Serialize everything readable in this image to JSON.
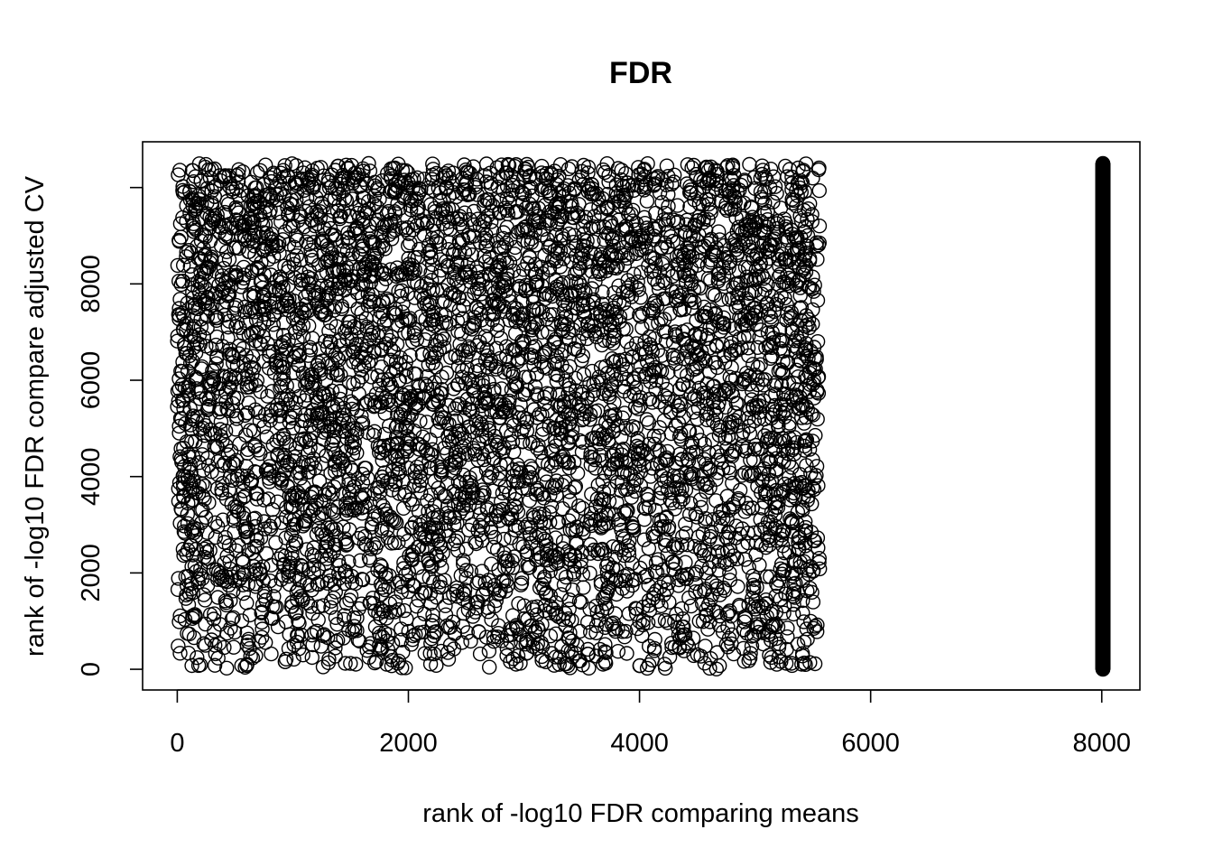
{
  "chart_data": {
    "type": "scatter",
    "title": "FDR",
    "xlabel": "rank of -log10 FDR comparing means",
    "ylabel": "rank of -log10 FDR compare adjusted CV",
    "xlim": [
      -300,
      8330
    ],
    "ylim": [
      -430,
      10950
    ],
    "x_ticks": [
      0,
      2000,
      4000,
      6000,
      8000
    ],
    "y_ticks": [
      0,
      2000,
      4000,
      6000,
      8000
    ],
    "grid": false,
    "legend": "none",
    "marker": "open-circle",
    "marker_color": "#000000",
    "series": [
      {
        "description_ref": "main cloud",
        "x_range": [
          0,
          5560
        ],
        "y_range": [
          0,
          10500
        ],
        "n_points": 5560,
        "distribution": "approximately uniform, denser near top"
      },
      {
        "description_ref": "column",
        "x": 8010,
        "y_range": [
          0,
          10500
        ],
        "n_points": 2450,
        "distribution": "dense vertical column of tied ranks"
      }
    ]
  }
}
